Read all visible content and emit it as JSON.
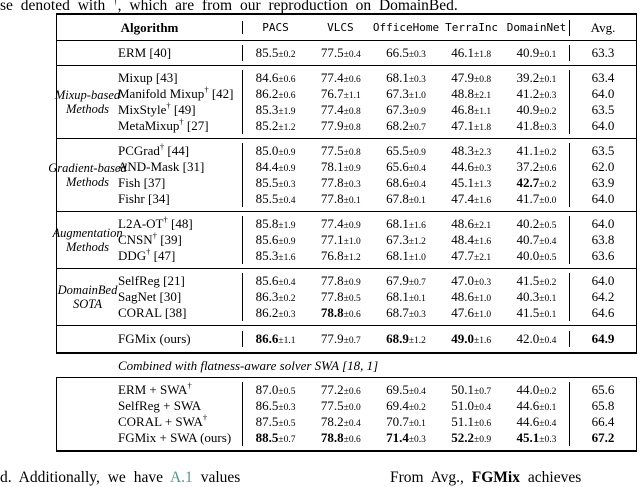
{
  "page": {
    "top_fragment": {
      "before": "se denoted with ",
      "dagger": "†",
      "after": ", which are from our reproduction on DomainBed."
    },
    "bottom_fragment": {
      "left_before": "d. Additionally, we have ",
      "left_ref": "A.1",
      "left_after": " values",
      "right_1": "From Avg., ",
      "right_2": "FGMix",
      "right_3": " achieves",
      "ref_color": "#4a9a8a"
    }
  },
  "table": {
    "header": {
      "algorithm_label": "Algorithm",
      "dataset_columns": [
        "PACS",
        "VLCS",
        "OfficeHome",
        "TerraInc",
        "DomainNet"
      ],
      "avg_label": "Avg."
    },
    "sections": [
      {
        "group_lines": [],
        "rows": [
          {
            "method": "ERM",
            "dagger": false,
            "cite": "[40]",
            "cells": [
              {
                "v": "85.5",
                "e": "0.2",
                "b": false
              },
              {
                "v": "77.5",
                "e": "0.4",
                "b": false
              },
              {
                "v": "66.5",
                "e": "0.3",
                "b": false
              },
              {
                "v": "46.1",
                "e": "1.8",
                "b": false
              },
              {
                "v": "40.9",
                "e": "0.1",
                "b": false
              }
            ],
            "avg": {
              "v": "63.3",
              "b": false
            }
          }
        ]
      },
      {
        "group_lines": [
          "Mixup-based",
          "Methods"
        ],
        "rows": [
          {
            "method": "Mixup",
            "dagger": false,
            "cite": "[43]",
            "cells": [
              {
                "v": "84.6",
                "e": "0.6",
                "b": false
              },
              {
                "v": "77.4",
                "e": "0.6",
                "b": false
              },
              {
                "v": "68.1",
                "e": "0.3",
                "b": false
              },
              {
                "v": "47.9",
                "e": "0.8",
                "b": false
              },
              {
                "v": "39.2",
                "e": "0.1",
                "b": false
              }
            ],
            "avg": {
              "v": "63.4",
              "b": false
            }
          },
          {
            "method": "Manifold Mixup",
            "dagger": true,
            "cite": "[42]",
            "cells": [
              {
                "v": "86.2",
                "e": "0.6",
                "b": false
              },
              {
                "v": "76.7",
                "e": "1.1",
                "b": false
              },
              {
                "v": "67.3",
                "e": "1.0",
                "b": false
              },
              {
                "v": "48.8",
                "e": "2.1",
                "b": false
              },
              {
                "v": "41.2",
                "e": "0.3",
                "b": false
              }
            ],
            "avg": {
              "v": "64.0",
              "b": false
            }
          },
          {
            "method": "MixStyle",
            "dagger": true,
            "cite": "[49]",
            "cells": [
              {
                "v": "85.3",
                "e": "1.9",
                "b": false
              },
              {
                "v": "77.4",
                "e": "0.8",
                "b": false
              },
              {
                "v": "67.3",
                "e": "0.9",
                "b": false
              },
              {
                "v": "46.8",
                "e": "1.1",
                "b": false
              },
              {
                "v": "40.9",
                "e": "0.2",
                "b": false
              }
            ],
            "avg": {
              "v": "63.5",
              "b": false
            }
          },
          {
            "method": "MetaMixup",
            "dagger": true,
            "cite": "[27]",
            "cells": [
              {
                "v": "85.2",
                "e": "1.2",
                "b": false
              },
              {
                "v": "77.9",
                "e": "0.8",
                "b": false
              },
              {
                "v": "68.2",
                "e": "0.7",
                "b": false
              },
              {
                "v": "47.1",
                "e": "1.8",
                "b": false
              },
              {
                "v": "41.8",
                "e": "0.3",
                "b": false
              }
            ],
            "avg": {
              "v": "64.0",
              "b": false
            }
          }
        ]
      },
      {
        "group_lines": [
          "Gradient-based",
          "Methods"
        ],
        "rows": [
          {
            "method": "PCGrad",
            "dagger": true,
            "cite": "[44]",
            "cells": [
              {
                "v": "85.0",
                "e": "0.9",
                "b": false
              },
              {
                "v": "77.5",
                "e": "0.8",
                "b": false
              },
              {
                "v": "65.5",
                "e": "0.9",
                "b": false
              },
              {
                "v": "48.3",
                "e": "2.3",
                "b": false
              },
              {
                "v": "41.1",
                "e": "0.2",
                "b": false
              }
            ],
            "avg": {
              "v": "63.5",
              "b": false
            }
          },
          {
            "method": "AND-Mask",
            "dagger": false,
            "cite": "[31]",
            "cells": [
              {
                "v": "84.4",
                "e": "0.9",
                "b": false
              },
              {
                "v": "78.1",
                "e": "0.9",
                "b": false
              },
              {
                "v": "65.6",
                "e": "0.4",
                "b": false
              },
              {
                "v": "44.6",
                "e": "0.3",
                "b": false
              },
              {
                "v": "37.2",
                "e": "0.6",
                "b": false
              }
            ],
            "avg": {
              "v": "62.0",
              "b": false
            }
          },
          {
            "method": "Fish",
            "dagger": false,
            "cite": "[37]",
            "cells": [
              {
                "v": "85.5",
                "e": "0.3",
                "b": false
              },
              {
                "v": "77.8",
                "e": "0.3",
                "b": false
              },
              {
                "v": "68.6",
                "e": "0.4",
                "b": false
              },
              {
                "v": "45.1",
                "e": "1.3",
                "b": false
              },
              {
                "v": "42.7",
                "e": "0.2",
                "b": true
              }
            ],
            "avg": {
              "v": "63.9",
              "b": false
            }
          },
          {
            "method": "Fishr",
            "dagger": false,
            "cite": "[34]",
            "cells": [
              {
                "v": "85.5",
                "e": "0.4",
                "b": false
              },
              {
                "v": "77.8",
                "e": "0.1",
                "b": false
              },
              {
                "v": "67.8",
                "e": "0.1",
                "b": false
              },
              {
                "v": "47.4",
                "e": "1.6",
                "b": false
              },
              {
                "v": "41.7",
                "e": "0.0",
                "b": false
              }
            ],
            "avg": {
              "v": "64.0",
              "b": false
            }
          }
        ]
      },
      {
        "group_lines": [
          "Augmentation",
          "Methods"
        ],
        "rows": [
          {
            "method": "L2A-OT",
            "dagger": true,
            "cite": "[48]",
            "cells": [
              {
                "v": "85.8",
                "e": "1.9",
                "b": false
              },
              {
                "v": "77.4",
                "e": "0.9",
                "b": false
              },
              {
                "v": "68.1",
                "e": "1.6",
                "b": false
              },
              {
                "v": "48.6",
                "e": "2.1",
                "b": false
              },
              {
                "v": "40.2",
                "e": "0.5",
                "b": false
              }
            ],
            "avg": {
              "v": "64.0",
              "b": false
            }
          },
          {
            "method": "CNSN",
            "dagger": true,
            "cite": "[39]",
            "cells": [
              {
                "v": "85.6",
                "e": "0.9",
                "b": false
              },
              {
                "v": "77.1",
                "e": "1.0",
                "b": false
              },
              {
                "v": "67.3",
                "e": "1.2",
                "b": false
              },
              {
                "v": "48.4",
                "e": "1.6",
                "b": false
              },
              {
                "v": "40.7",
                "e": "0.4",
                "b": false
              }
            ],
            "avg": {
              "v": "63.8",
              "b": false
            }
          },
          {
            "method": "DDG",
            "dagger": true,
            "cite": "[47]",
            "cells": [
              {
                "v": "85.3",
                "e": "1.6",
                "b": false
              },
              {
                "v": "76.8",
                "e": "1.2",
                "b": false
              },
              {
                "v": "68.1",
                "e": "1.0",
                "b": false
              },
              {
                "v": "47.7",
                "e": "2.1",
                "b": false
              },
              {
                "v": "40.0",
                "e": "0.5",
                "b": false
              }
            ],
            "avg": {
              "v": "63.6",
              "b": false
            }
          }
        ]
      },
      {
        "group_lines": [
          "DomainBed",
          "SOTA"
        ],
        "rows": [
          {
            "method": "SelfReg",
            "dagger": false,
            "cite": "[21]",
            "cells": [
              {
                "v": "85.6",
                "e": "0.4",
                "b": false
              },
              {
                "v": "77.8",
                "e": "0.9",
                "b": false
              },
              {
                "v": "67.9",
                "e": "0.7",
                "b": false
              },
              {
                "v": "47.0",
                "e": "0.3",
                "b": false
              },
              {
                "v": "41.5",
                "e": "0.2",
                "b": false
              }
            ],
            "avg": {
              "v": "64.0",
              "b": false
            }
          },
          {
            "method": "SagNet",
            "dagger": false,
            "cite": "[30]",
            "cells": [
              {
                "v": "86.3",
                "e": "0.2",
                "b": false
              },
              {
                "v": "77.8",
                "e": "0.5",
                "b": false
              },
              {
                "v": "68.1",
                "e": "0.1",
                "b": false
              },
              {
                "v": "48.6",
                "e": "1.0",
                "b": false
              },
              {
                "v": "40.3",
                "e": "0.1",
                "b": false
              }
            ],
            "avg": {
              "v": "64.2",
              "b": false
            }
          },
          {
            "method": "CORAL",
            "dagger": false,
            "cite": "[38]",
            "cells": [
              {
                "v": "86.2",
                "e": "0.3",
                "b": false
              },
              {
                "v": "78.8",
                "e": "0.6",
                "b": true
              },
              {
                "v": "68.7",
                "e": "0.3",
                "b": false
              },
              {
                "v": "47.6",
                "e": "1.0",
                "b": false
              },
              {
                "v": "41.5",
                "e": "0.1",
                "b": false
              }
            ],
            "avg": {
              "v": "64.6",
              "b": false
            }
          }
        ]
      },
      {
        "group_lines": [],
        "rows": [
          {
            "method": "FGMix (ours)",
            "dagger": false,
            "cite": "",
            "cells": [
              {
                "v": "86.6",
                "e": "1.1",
                "b": true
              },
              {
                "v": "77.9",
                "e": "0.7",
                "b": false
              },
              {
                "v": "68.9",
                "e": "1.2",
                "b": true
              },
              {
                "v": "49.0",
                "e": "1.6",
                "b": true
              },
              {
                "v": "42.0",
                "e": "0.4",
                "b": false
              }
            ],
            "avg": {
              "v": "64.9",
              "b": true
            }
          }
        ]
      }
    ],
    "swa_heading": "Combined with flatness-aware solver SWA [18, 1]",
    "swa_rows": [
      {
        "method": "ERM + SWA",
        "dagger": true,
        "cite": "",
        "cells": [
          {
            "v": "87.0",
            "e": "0.5",
            "b": false
          },
          {
            "v": "77.2",
            "e": "0.6",
            "b": false
          },
          {
            "v": "69.5",
            "e": "0.4",
            "b": false
          },
          {
            "v": "50.1",
            "e": "0.7",
            "b": false
          },
          {
            "v": "44.0",
            "e": "0.2",
            "b": false
          }
        ],
        "avg": {
          "v": "65.6",
          "b": false
        }
      },
      {
        "method": "SelfReg + SWA",
        "dagger": false,
        "cite": "",
        "cells": [
          {
            "v": "86.5",
            "e": "0.3",
            "b": false
          },
          {
            "v": "77.5",
            "e": "0.0",
            "b": false
          },
          {
            "v": "69.4",
            "e": "0.2",
            "b": false
          },
          {
            "v": "51.0",
            "e": "0.4",
            "b": false
          },
          {
            "v": "44.6",
            "e": "0.1",
            "b": false
          }
        ],
        "avg": {
          "v": "65.8",
          "b": false
        }
      },
      {
        "method": "CORAL + SWA",
        "dagger": true,
        "cite": "",
        "cells": [
          {
            "v": "87.5",
            "e": "0.5",
            "b": false
          },
          {
            "v": "78.2",
            "e": "0.4",
            "b": false
          },
          {
            "v": "70.7",
            "e": "0.1",
            "b": false
          },
          {
            "v": "51.1",
            "e": "0.6",
            "b": false
          },
          {
            "v": "44.6",
            "e": "0.4",
            "b": false
          }
        ],
        "avg": {
          "v": "66.4",
          "b": false
        }
      },
      {
        "method": "FGMix + SWA (ours)",
        "dagger": false,
        "cite": "",
        "cells": [
          {
            "v": "88.5",
            "e": "0.7",
            "b": true
          },
          {
            "v": "78.8",
            "e": "0.6",
            "b": true
          },
          {
            "v": "71.4",
            "e": "0.3",
            "b": true
          },
          {
            "v": "52.2",
            "e": "0.9",
            "b": true
          },
          {
            "v": "45.1",
            "e": "0.3",
            "b": true
          }
        ],
        "avg": {
          "v": "67.2",
          "b": true
        }
      }
    ]
  }
}
